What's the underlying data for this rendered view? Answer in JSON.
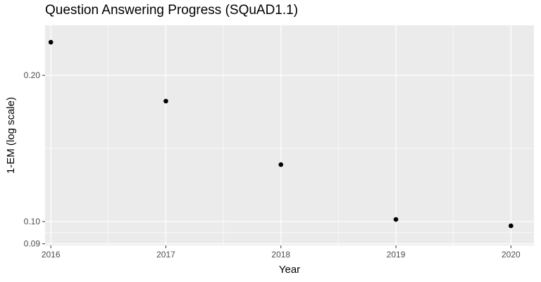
{
  "chart_data": {
    "type": "scatter",
    "title": "Question Answering Progress (SQuAD1.1)",
    "xlabel": "Year",
    "ylabel": "1-EM (log scale)",
    "x_scale": "linear",
    "y_scale": "log",
    "xlim": [
      2015.95,
      2020.2
    ],
    "ylim": [
      0.0893,
      0.2535
    ],
    "x_ticks": [
      2016,
      2017,
      2018,
      2019,
      2020
    ],
    "y_ticks": [
      0.09,
      0.1,
      0.2
    ],
    "y_tick_labels": [
      "0.09",
      "0.10",
      "0.20"
    ],
    "grid": true,
    "x": [
      2016,
      2017,
      2018,
      2019,
      2020
    ],
    "y": [
      0.234,
      0.177,
      0.131,
      0.101,
      0.098
    ],
    "colors": {
      "panel": "#ebebeb",
      "grid": "#ffffff",
      "point": "#000000",
      "tick": "#333333"
    }
  }
}
